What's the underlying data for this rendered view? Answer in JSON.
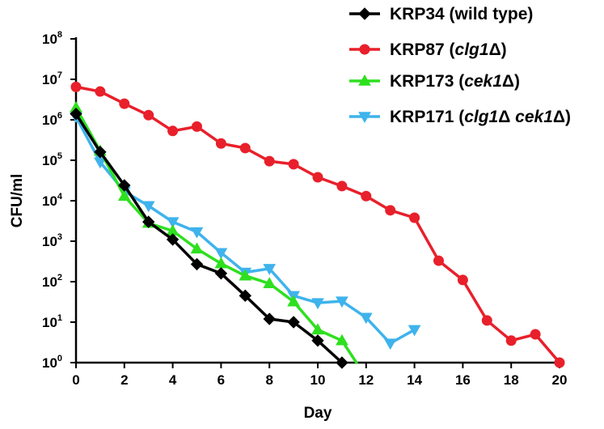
{
  "chart_data": {
    "type": "line",
    "title": "",
    "xlabel": "Day",
    "ylabel": "CFU/ml",
    "yscale": "log10",
    "xlim": [
      0,
      20
    ],
    "ylim": [
      1,
      100000000
    ],
    "x_ticks": [
      "0",
      "2",
      "4",
      "6",
      "8",
      "10",
      "12",
      "14",
      "16",
      "18",
      "20"
    ],
    "y_ticks": [
      {
        "base": "10",
        "exp": "0",
        "value": 1
      },
      {
        "base": "10",
        "exp": "1",
        "value": 10
      },
      {
        "base": "10",
        "exp": "2",
        "value": 100
      },
      {
        "base": "10",
        "exp": "3",
        "value": 1000
      },
      {
        "base": "10",
        "exp": "4",
        "value": 10000
      },
      {
        "base": "10",
        "exp": "5",
        "value": 100000
      },
      {
        "base": "10",
        "exp": "6",
        "value": 1000000
      },
      {
        "base": "10",
        "exp": "7",
        "value": 10000000
      },
      {
        "base": "10",
        "exp": "8",
        "value": 100000000
      }
    ],
    "grid": false,
    "legend_position": "top-right",
    "series": [
      {
        "name": "KRP34  (wild type)",
        "legend_parts": [
          {
            "text": "KRP34  (wild type)",
            "italic": false
          }
        ],
        "color": "#000000",
        "marker": "diamond",
        "x": [
          0,
          1,
          2,
          3,
          4,
          5,
          6,
          7,
          8,
          9,
          10,
          11
        ],
        "y": [
          1400000,
          160000,
          24000,
          3000,
          1100,
          270,
          160,
          45,
          12,
          10,
          3.5,
          1
        ]
      },
      {
        "name": "KRP87  (clg1Δ)",
        "legend_parts": [
          {
            "text": "KRP87  (",
            "italic": false
          },
          {
            "text": "clg1",
            "italic": true
          },
          {
            "text": "Δ)",
            "italic": false
          }
        ],
        "color": "#e8202b",
        "marker": "circle",
        "x": [
          0,
          1,
          2,
          3,
          4,
          5,
          6,
          7,
          8,
          9,
          10,
          11,
          12,
          13,
          14,
          15,
          16,
          17,
          18,
          19,
          20
        ],
        "y": [
          6500000,
          5000000,
          2500000,
          1300000,
          530000,
          680000,
          260000,
          200000,
          95000,
          80000,
          38000,
          23000,
          13000,
          5800,
          3800,
          330,
          110,
          11,
          3.5,
          5,
          1
        ]
      },
      {
        "name": "KRP173 (cek1Δ)",
        "legend_parts": [
          {
            "text": "KRP173 (",
            "italic": false
          },
          {
            "text": "cek1",
            "italic": true
          },
          {
            "text": "Δ)",
            "italic": false
          }
        ],
        "color": "#2ee01f",
        "marker": "triangle-up",
        "x": [
          0,
          1,
          2,
          3,
          4,
          5,
          6,
          7,
          8,
          9,
          10,
          11,
          11.6
        ],
        "y": [
          2000000,
          170000,
          13000,
          2800,
          1800,
          650,
          280,
          140,
          90,
          32,
          6.5,
          3.5,
          1
        ]
      },
      {
        "name": "KRP171 (clg1Δ cek1Δ)",
        "legend_parts": [
          {
            "text": "KRP171 (",
            "italic": false
          },
          {
            "text": "clg1",
            "italic": true
          },
          {
            "text": "Δ ",
            "italic": false
          },
          {
            "text": "cek1",
            "italic": true
          },
          {
            "text": "Δ)",
            "italic": false
          }
        ],
        "color": "#3fb3ec",
        "marker": "triangle-down",
        "x": [
          0,
          1,
          2,
          3,
          4,
          5,
          6,
          7,
          8,
          9,
          10,
          11,
          12,
          13,
          14
        ],
        "y": [
          1200000,
          90000,
          17000,
          7500,
          3000,
          1700,
          520,
          170,
          210,
          45,
          30,
          33,
          13,
          3,
          6.5
        ]
      }
    ]
  }
}
